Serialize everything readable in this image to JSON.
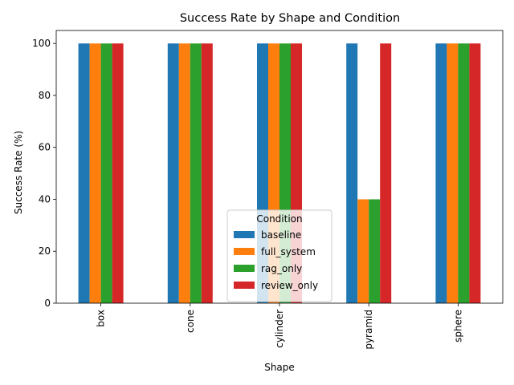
{
  "chart_data": {
    "type": "bar",
    "title": "Success Rate by Shape and Condition",
    "xlabel": "Shape",
    "ylabel": "Success Rate (%)",
    "categories": [
      "box",
      "cone",
      "cylinder",
      "pyramid",
      "sphere"
    ],
    "ylim": [
      0,
      105
    ],
    "yticks": [
      0,
      20,
      40,
      60,
      80,
      100
    ],
    "grid": false,
    "legend": {
      "title": "Condition",
      "placement": "lower-center"
    },
    "series": [
      {
        "name": "baseline",
        "color": "#1f77b4",
        "values": [
          100,
          100,
          100,
          100,
          100
        ]
      },
      {
        "name": "full_system",
        "color": "#ff7f0e",
        "values": [
          100,
          100,
          100,
          40,
          100
        ]
      },
      {
        "name": "rag_only",
        "color": "#2ca02c",
        "values": [
          100,
          100,
          100,
          40,
          100
        ]
      },
      {
        "name": "review_only",
        "color": "#d62728",
        "values": [
          100,
          100,
          100,
          100,
          100
        ]
      }
    ]
  }
}
